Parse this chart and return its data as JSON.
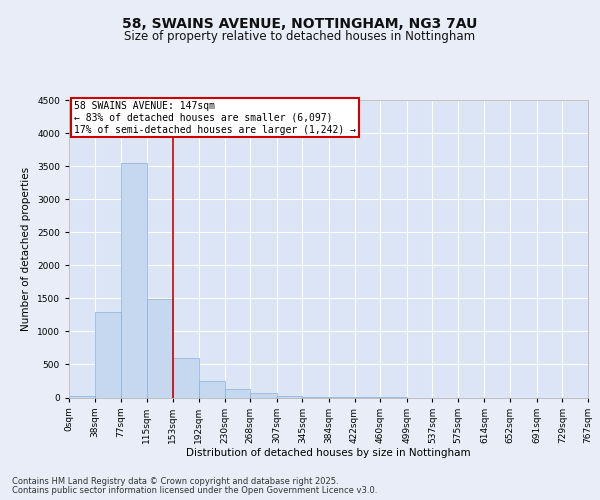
{
  "title_line1": "58, SWAINS AVENUE, NOTTINGHAM, NG3 7AU",
  "title_line2": "Size of property relative to detached houses in Nottingham",
  "xlabel": "Distribution of detached houses by size in Nottingham",
  "ylabel": "Number of detached properties",
  "annotation_title": "58 SWAINS AVENUE: 147sqm",
  "annotation_line2": "← 83% of detached houses are smaller (6,097)",
  "annotation_line3": "17% of semi-detached houses are larger (1,242) →",
  "bar_edges": [
    0,
    38,
    77,
    115,
    153,
    192,
    230,
    268,
    307,
    345,
    384,
    422,
    460,
    499,
    537,
    575,
    614,
    652,
    691,
    729,
    767
  ],
  "bar_labels": [
    "0sqm",
    "38sqm",
    "77sqm",
    "115sqm",
    "153sqm",
    "192sqm",
    "230sqm",
    "268sqm",
    "307sqm",
    "345sqm",
    "384sqm",
    "422sqm",
    "460sqm",
    "499sqm",
    "537sqm",
    "575sqm",
    "614sqm",
    "652sqm",
    "691sqm",
    "729sqm",
    "767sqm"
  ],
  "bar_values": [
    30,
    1290,
    3540,
    1490,
    590,
    250,
    130,
    65,
    25,
    10,
    5,
    3,
    2,
    0,
    0,
    0,
    0,
    0,
    0,
    0
  ],
  "bar_color": "#c5d8f0",
  "bar_edge_color": "#8ab0d8",
  "property_line_x": 153,
  "property_line_color": "#cc0000",
  "annotation_box_color": "#cc0000",
  "annotation_fill_color": "#ffffff",
  "background_color": "#e8edf8",
  "plot_bg_color": "#dce5f5",
  "grid_color": "#ffffff",
  "ylim": [
    0,
    4500
  ],
  "yticks": [
    0,
    500,
    1000,
    1500,
    2000,
    2500,
    3000,
    3500,
    4000,
    4500
  ],
  "footer_line1": "Contains HM Land Registry data © Crown copyright and database right 2025.",
  "footer_line2": "Contains public sector information licensed under the Open Government Licence v3.0.",
  "title_fontsize": 10,
  "subtitle_fontsize": 8.5,
  "axis_label_fontsize": 7.5,
  "tick_fontsize": 6.5,
  "annotation_fontsize": 7,
  "footer_fontsize": 6
}
